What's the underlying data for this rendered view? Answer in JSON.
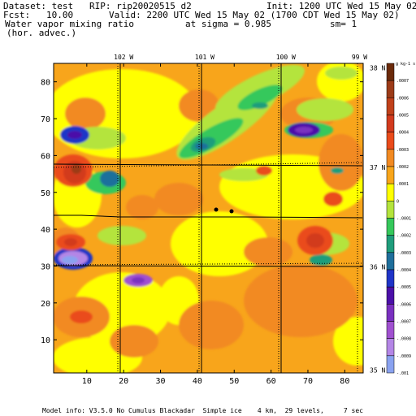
{
  "header": {
    "dataset": "Dataset: test   RIP: rip20020515 d2",
    "init": "Init: 1200 UTC Wed 15 May 02",
    "fcst": "Fcst:   10.00",
    "valid": "Valid: 2200 UTC Wed 15 May 02 (1700 CDT Wed 15 May 02)",
    "field": "Water vapor mixing ratio",
    "sigma": "at sigma = 0.985",
    "sm": "sm= 1",
    "subfield": "(hor. advec.)"
  },
  "footer": {
    "model_info": "Model info: V3.5.0 No Cumulus Blackadar  Simple ice    4 km,  29 levels,     7 sec"
  },
  "colors": {
    "dark_brown": "#6b2a0a",
    "brown": "#9c3b18",
    "red": "#d23a1e",
    "red_orange": "#ea4b1b",
    "orange": "#f28a22",
    "orange_light": "#f8a51b",
    "yellow": "#ffff00",
    "green_light": "#b4e43c",
    "green": "#35c85b",
    "teal": "#1f9d7c",
    "blue_teal": "#1f6f9c",
    "blue": "#1f34c8",
    "purple": "#4b10a8",
    "violet": "#7a30c0",
    "magenta": "#a050d0",
    "lavender": "#b486e6",
    "light_blue": "#8aa2f0"
  },
  "chart_data": {
    "type": "heatmap",
    "title": "Water vapor mixing ratio",
    "subtitle": "(hor. advec.)",
    "x_ticks": [
      10,
      20,
      30,
      40,
      50,
      60,
      70,
      80
    ],
    "y_ticks": [
      10,
      20,
      30,
      40,
      50,
      60,
      70,
      80
    ],
    "xlim": [
      1,
      85
    ],
    "ylim": [
      1,
      85
    ],
    "lon_labels": [
      {
        "label": "102 W",
        "x": 20
      },
      {
        "label": "101 W",
        "x": 42
      },
      {
        "label": "100 W",
        "x": 64
      },
      {
        "label": "99 W",
        "x": 84
      }
    ],
    "lat_labels": [
      {
        "label": "38 N",
        "y": 84
      },
      {
        "label": "37 N",
        "y": 57
      },
      {
        "label": "36 N",
        "y": 30
      },
      {
        "label": "35 N",
        "y": 2
      }
    ],
    "colorbar_unit": "g kg-1 s-1",
    "colorbar_levels": [
      ".0007",
      ".0006",
      ".0005",
      ".0004",
      ".0003",
      ".0002",
      ".0001",
      "0",
      "-.0001",
      "-.0002",
      "-.0003",
      "-.0004",
      "-.0005",
      "-.0006",
      "-.0007",
      "-.0008",
      "-.0009",
      "-.001"
    ],
    "colorbar_colors": [
      "#6b2a0a",
      "#9c3b18",
      "#c0401a",
      "#d23a1e",
      "#ea4b1b",
      "#f28a22",
      "#f8a51b",
      "#ffff00",
      "#b4e43c",
      "#35c85b",
      "#1f9d7c",
      "#1f6f9c",
      "#1f34c8",
      "#4b10a8",
      "#7a30c0",
      "#a050d0",
      "#b486e6",
      "#8aa2f0"
    ]
  }
}
